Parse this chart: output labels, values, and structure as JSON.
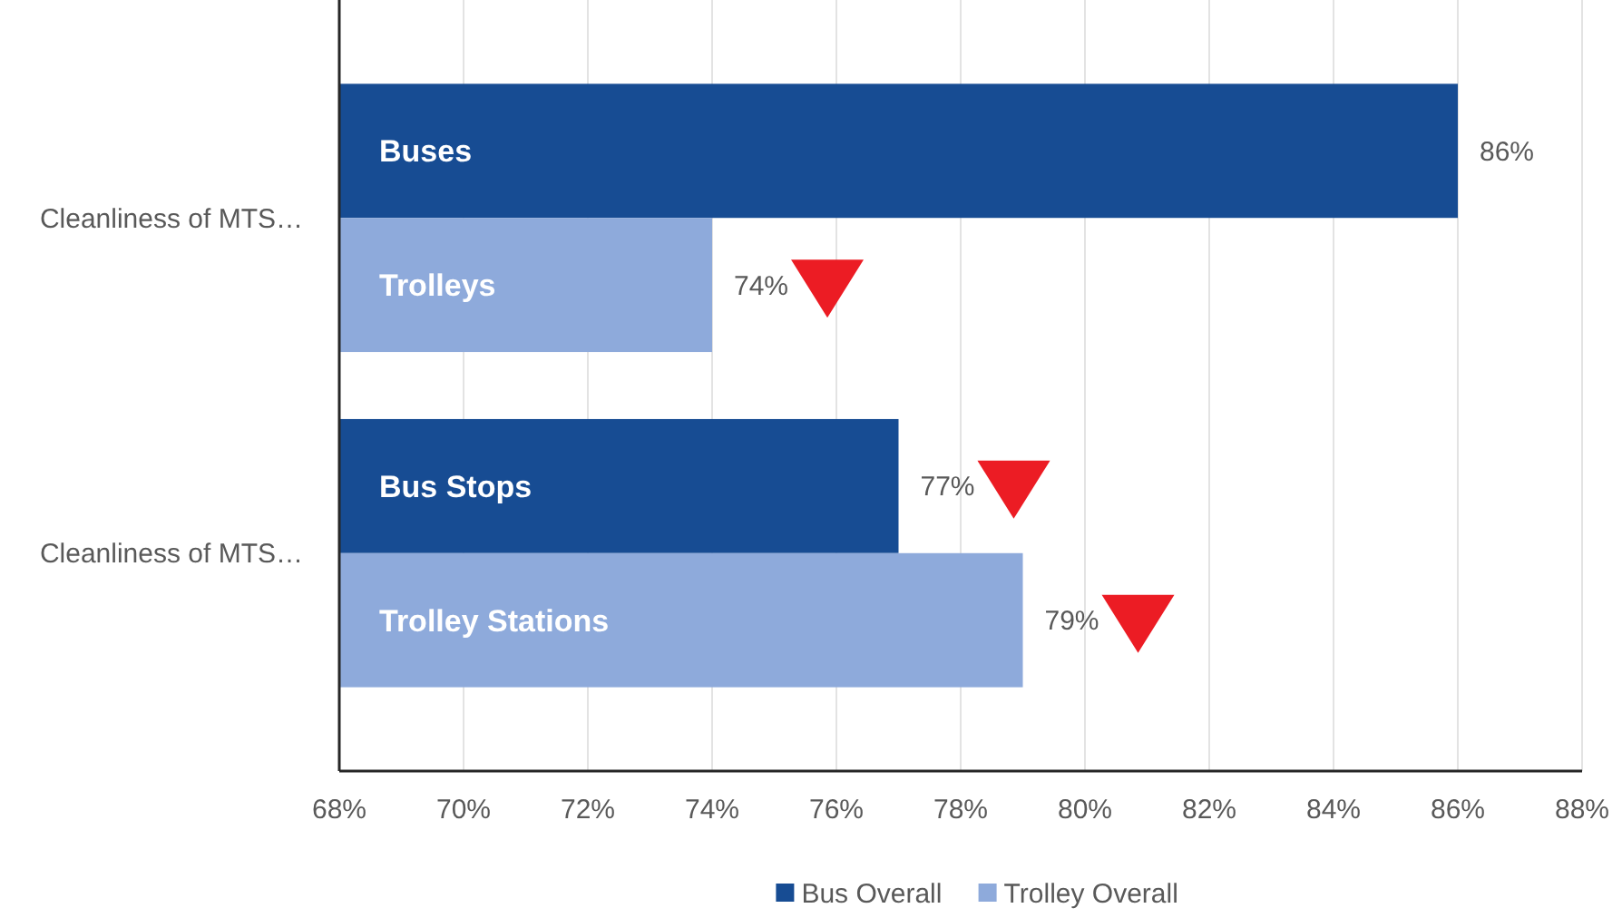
{
  "chart_data": {
    "type": "bar",
    "orientation": "horizontal",
    "categories": [
      "Cleanliness of MTS…",
      "Cleanliness of MTS…"
    ],
    "series": [
      {
        "name": "Bus Overall",
        "color": "#174c93",
        "values": [
          86,
          77
        ],
        "value_labels": [
          "86%",
          "77%"
        ]
      },
      {
        "name": "Trolley Overall",
        "color": "#8eaadb",
        "values": [
          74,
          79
        ],
        "value_labels": [
          "74%",
          "79%"
        ]
      }
    ],
    "xlim": [
      68,
      88
    ],
    "xticks": [
      {
        "value": 68,
        "label": "68%"
      },
      {
        "value": 70,
        "label": "70%"
      },
      {
        "value": 72,
        "label": "72%"
      },
      {
        "value": 74,
        "label": "74%"
      },
      {
        "value": 76,
        "label": "76%"
      },
      {
        "value": 78,
        "label": "78%"
      },
      {
        "value": 80,
        "label": "80%"
      },
      {
        "value": 82,
        "label": "82%"
      },
      {
        "value": 84,
        "label": "84%"
      },
      {
        "value": 86,
        "label": "86%"
      },
      {
        "value": 88,
        "label": "88%"
      }
    ],
    "grid": "x",
    "legend": "bottom",
    "annotations": [
      "Buses",
      "Trolleys",
      "Bus Stops",
      "Trolley Stations"
    ]
  }
}
